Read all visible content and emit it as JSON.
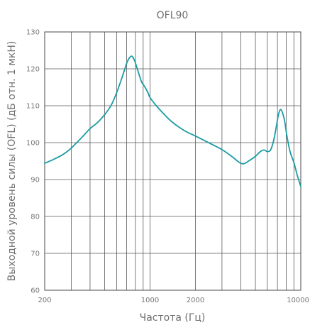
{
  "chart_data": {
    "type": "line",
    "title": "OFL90",
    "xlabel": "Частота (Гц)",
    "ylabel": "Выходной уровень силы (OFL) (дБ отн. 1 мкН)",
    "x_scale": "log",
    "xlim": [
      200,
      10000
    ],
    "ylim": [
      60,
      130
    ],
    "x_ticks": [
      200,
      1000,
      2000,
      10000
    ],
    "x_tick_labels": [
      "200",
      "1000",
      "2000",
      "10000"
    ],
    "x_gridlines": [
      200,
      300,
      400,
      500,
      600,
      700,
      800,
      900,
      1000,
      2000,
      3000,
      4000,
      5000,
      6000,
      7000,
      8000,
      9000,
      10000
    ],
    "y_ticks": [
      60,
      70,
      80,
      90,
      100,
      110,
      120,
      130
    ],
    "grid": true,
    "legend": "none",
    "colors": {
      "line": "#1a9ca3"
    },
    "series": [
      {
        "x": [
          200,
          230,
          260,
          280,
          300,
          330,
          360,
          400,
          450,
          500,
          550,
          600,
          650,
          700,
          730,
          760,
          790,
          810,
          830,
          850,
          880,
          920,
          970,
          1000,
          1100,
          1200,
          1400,
          1700,
          2000,
          2500,
          3000,
          3500,
          3800,
          4000,
          4200,
          4500,
          5000,
          5400,
          5700,
          6000,
          6300,
          6600,
          6900,
          7100,
          7300,
          7500,
          7800,
          8100,
          8500,
          9000,
          9500,
          10000
        ],
        "y": [
          94.4,
          95.5,
          96.6,
          97.5,
          98.5,
          100.2,
          101.8,
          103.8,
          105.5,
          107.6,
          110.0,
          113.5,
          117.5,
          121.5,
          123.0,
          123.4,
          122.2,
          120.9,
          119.5,
          118.2,
          116.4,
          115.2,
          113.5,
          112.2,
          110.0,
          108.3,
          105.6,
          103.2,
          101.8,
          99.8,
          98.1,
          96.2,
          95.0,
          94.4,
          94.3,
          95.0,
          96.3,
          97.6,
          98.0,
          97.6,
          98.0,
          100.5,
          104.6,
          107.5,
          108.9,
          108.5,
          106.0,
          101.7,
          97.5,
          94.6,
          91.0,
          88.1
        ]
      }
    ]
  }
}
